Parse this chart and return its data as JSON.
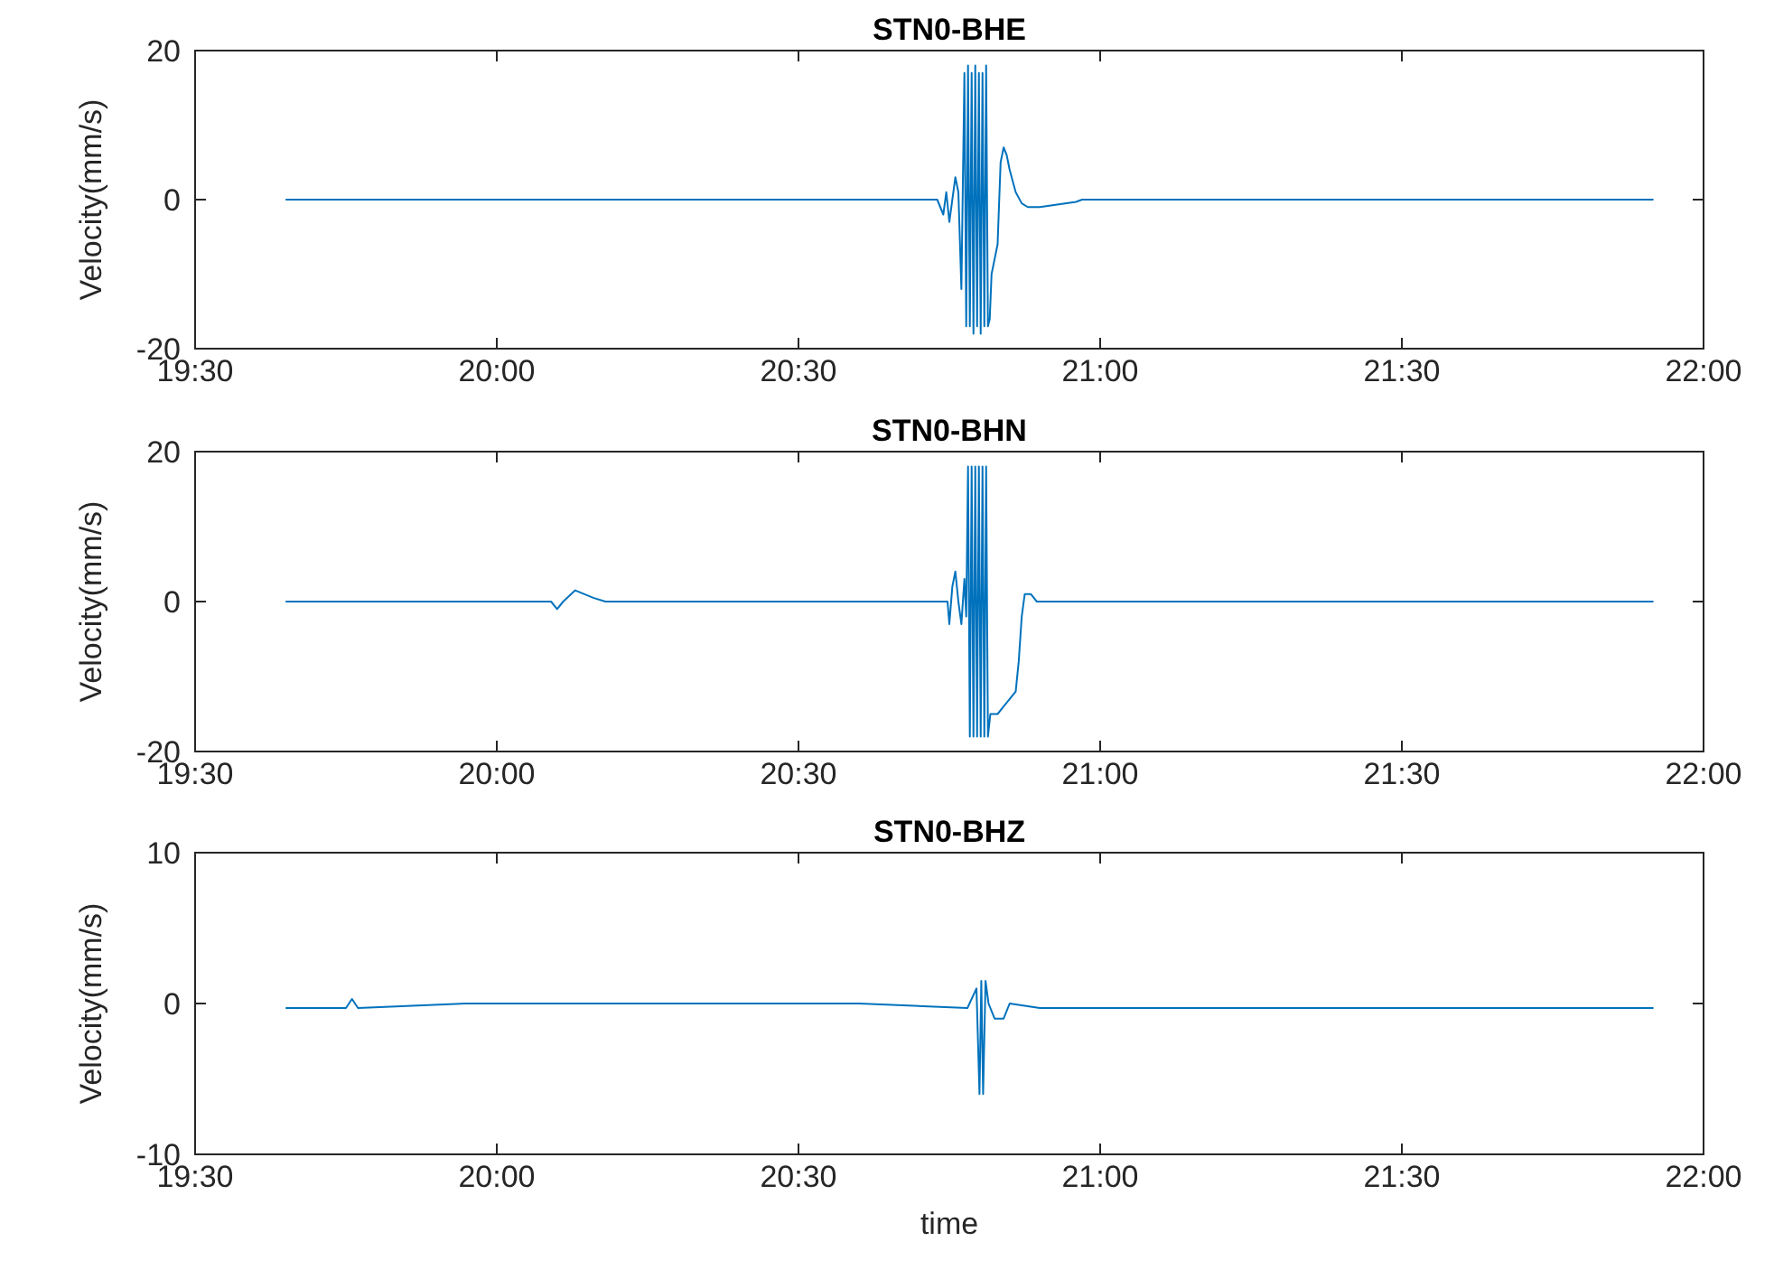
{
  "chart_data": [
    {
      "type": "line",
      "title": "STN0-BHE",
      "ylabel": "Velocity(mm/s)",
      "xlim": [
        19.5,
        22
      ],
      "ylim": [
        -20,
        20
      ],
      "yticks": [
        -20,
        0,
        20
      ],
      "xticks": [
        {
          "value": 19.5,
          "label": "19:30"
        },
        {
          "value": 20,
          "label": "20:00"
        },
        {
          "value": 20.5,
          "label": "20:30"
        },
        {
          "value": 21,
          "label": "21:00"
        },
        {
          "value": 21.5,
          "label": "21:30"
        },
        {
          "value": 22,
          "label": "22:00"
        }
      ],
      "grid": false,
      "marker": "none",
      "line_style": "solid",
      "series": [
        {
          "color": "#0072bd",
          "x": [
            19.65,
            20.72,
            20.73,
            20.74,
            20.745,
            20.75,
            20.76,
            20.765,
            20.77,
            20.775,
            20.778,
            20.781,
            20.784,
            20.787,
            20.79,
            20.793,
            20.796,
            20.799,
            20.802,
            20.805,
            20.808,
            20.811,
            20.814,
            20.817,
            20.82,
            20.83,
            20.835,
            20.84,
            20.845,
            20.85,
            20.86,
            20.87,
            20.88,
            20.9,
            20.96,
            20.97,
            21.917
          ],
          "values": [
            0,
            0,
            0,
            -2,
            1,
            -3,
            3,
            1,
            -12,
            17,
            -17,
            18,
            -17,
            17,
            -18,
            18,
            -17,
            17,
            -18,
            17,
            -17,
            18,
            -17,
            -16,
            -10,
            -6,
            5,
            7,
            6,
            4,
            1,
            -0.5,
            -1,
            -1,
            -0.3,
            0,
            0
          ]
        }
      ]
    },
    {
      "type": "line",
      "title": "STN0-BHN",
      "ylabel": "Velocity(mm/s)",
      "xlim": [
        19.5,
        22
      ],
      "ylim": [
        -20,
        20
      ],
      "yticks": [
        -20,
        0,
        20
      ],
      "xticks": [
        {
          "value": 19.5,
          "label": "19:30"
        },
        {
          "value": 20,
          "label": "20:00"
        },
        {
          "value": 20.5,
          "label": "20:30"
        },
        {
          "value": 21,
          "label": "21:00"
        },
        {
          "value": 21.5,
          "label": "21:30"
        },
        {
          "value": 22,
          "label": "22:00"
        }
      ],
      "grid": false,
      "marker": "none",
      "line_style": "solid",
      "series": [
        {
          "color": "#0072bd",
          "x": [
            19.65,
            20.09,
            20.1,
            20.11,
            20.13,
            20.16,
            20.18,
            20.747,
            20.75,
            20.755,
            20.76,
            20.765,
            20.77,
            20.775,
            20.778,
            20.781,
            20.784,
            20.787,
            20.79,
            20.793,
            20.796,
            20.799,
            20.802,
            20.805,
            20.808,
            20.811,
            20.814,
            20.818,
            20.83,
            20.84,
            20.85,
            20.86,
            20.865,
            20.87,
            20.875,
            20.885,
            20.895,
            21.917
          ],
          "values": [
            0,
            0,
            -1,
            0,
            1.5,
            0.5,
            0,
            0,
            -3,
            2,
            4,
            0,
            -3,
            3,
            -2,
            18,
            -18,
            18,
            -18,
            18,
            -18,
            18,
            -18,
            18,
            -18,
            18,
            -18,
            -15,
            -15,
            -14,
            -13,
            -12,
            -8,
            -2,
            1,
            1,
            0,
            0
          ]
        }
      ]
    },
    {
      "type": "line",
      "title": "STN0-BHZ",
      "ylabel": "Velocity(mm/s)",
      "xlabel": "time",
      "xlim": [
        19.5,
        22
      ],
      "ylim": [
        -10,
        10
      ],
      "yticks": [
        -10,
        0,
        10
      ],
      "xticks": [
        {
          "value": 19.5,
          "label": "19:30"
        },
        {
          "value": 20,
          "label": "20:00"
        },
        {
          "value": 20.5,
          "label": "20:30"
        },
        {
          "value": 21,
          "label": "21:00"
        },
        {
          "value": 21.5,
          "label": "21:30"
        },
        {
          "value": 22,
          "label": "22:00"
        }
      ],
      "grid": false,
      "marker": "none",
      "line_style": "solid",
      "series": [
        {
          "color": "#0072bd",
          "x": [
            19.65,
            19.75,
            19.76,
            19.77,
            19.95,
            20.6,
            20.78,
            20.795,
            20.8,
            20.803,
            20.806,
            20.81,
            20.815,
            20.825,
            20.84,
            20.85,
            20.9,
            21.917
          ],
          "values": [
            -0.3,
            -0.3,
            0.3,
            -0.3,
            0,
            0,
            -0.3,
            1,
            -6,
            1.5,
            -6,
            1.5,
            0,
            -1,
            -1,
            0,
            -0.3,
            -0.3
          ]
        }
      ]
    }
  ]
}
